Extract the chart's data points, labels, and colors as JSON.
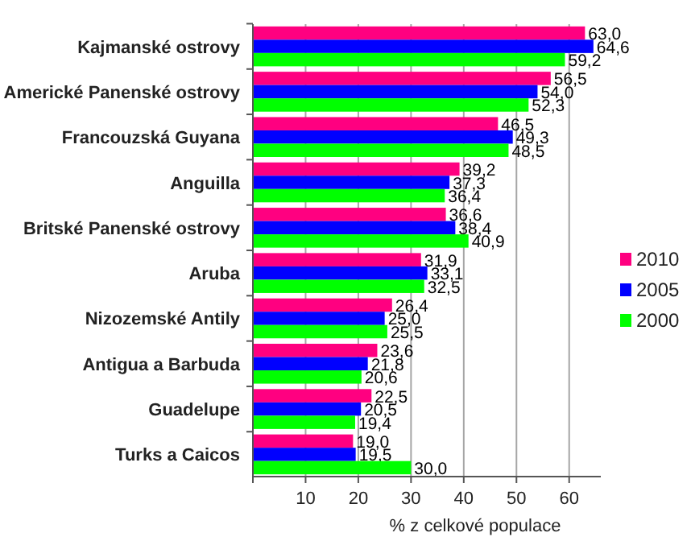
{
  "chart_data": {
    "type": "bar",
    "orientation": "horizontal",
    "xlabel": "% z celkové populace",
    "categories": [
      "Kajmanské ostrovy",
      "Americké Panenské ostrovy",
      "Francouzská Guyana",
      "Anguilla",
      "Britské Panenské ostrovy",
      "Aruba",
      "Nizozemské Antily",
      "Antigua a Barbuda",
      "Guadelupe",
      "Turks a Caicos"
    ],
    "series": [
      {
        "name": "2010",
        "color": "#ff0080",
        "values": [
          63.0,
          56.5,
          46.5,
          39.2,
          36.6,
          31.9,
          26.4,
          23.6,
          22.5,
          19.0
        ],
        "value_labels": [
          "63,0",
          "56,5",
          "46,5",
          "39,2",
          "36,6",
          "31,9",
          "26,4",
          "23,6",
          "22,5",
          "19,0"
        ]
      },
      {
        "name": "2005",
        "color": "#0000ff",
        "values": [
          64.6,
          54.0,
          49.3,
          37.3,
          38.4,
          33.1,
          25.0,
          21.8,
          20.5,
          19.5
        ],
        "value_labels": [
          "64,6",
          "54,0",
          "49,3",
          "37,3",
          "38,4",
          "33,1",
          "25,0",
          "21,8",
          "20,5",
          "19,5"
        ]
      },
      {
        "name": "2000",
        "color": "#00ff00",
        "values": [
          59.2,
          52.3,
          48.5,
          36.4,
          40.9,
          32.5,
          25.5,
          20.6,
          19.4,
          30.0
        ],
        "value_labels": [
          "59,2",
          "52,3",
          "48,5",
          "36,4",
          "40,9",
          "32,5",
          "25,5",
          "20,6",
          "19,4",
          "30,0"
        ]
      }
    ],
    "xlim": [
      0,
      66
    ],
    "xticks": [
      {
        "value": 0,
        "label": null
      },
      10,
      20,
      30,
      40,
      50,
      60
    ],
    "grid": "x",
    "legend": "right"
  }
}
